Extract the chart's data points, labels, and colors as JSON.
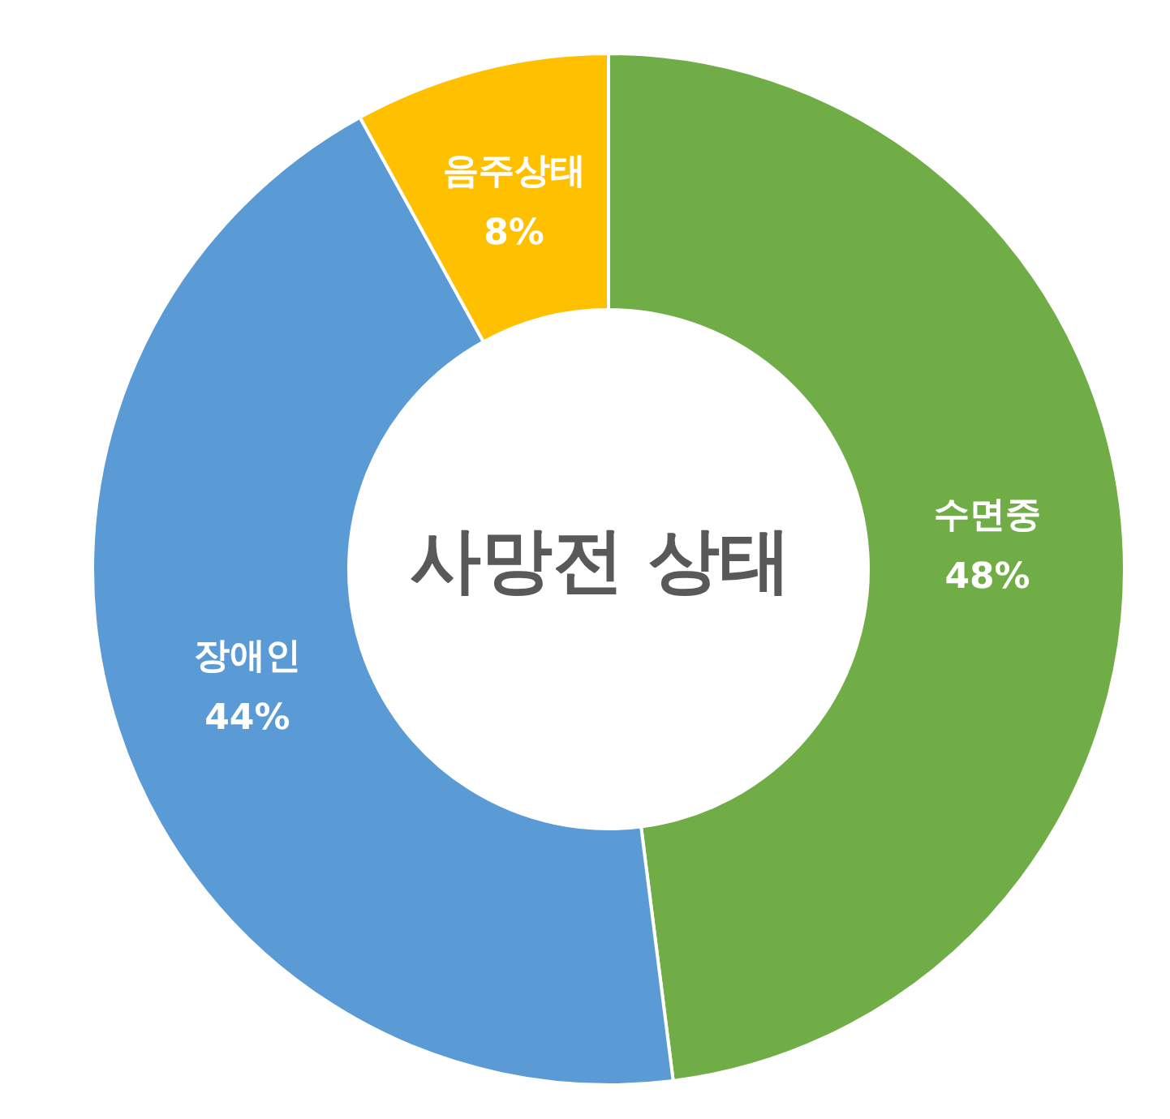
{
  "chart_data": {
    "type": "donut",
    "title": "사망전 상태",
    "categories": [
      "수면중",
      "장애인",
      "음주상태"
    ],
    "values": [
      48,
      44,
      8
    ],
    "colors": [
      "#70ad47",
      "#5b9bd5",
      "#ffc000"
    ],
    "value_labels": [
      "48%",
      "44%",
      "8%"
    ],
    "legend": false
  }
}
